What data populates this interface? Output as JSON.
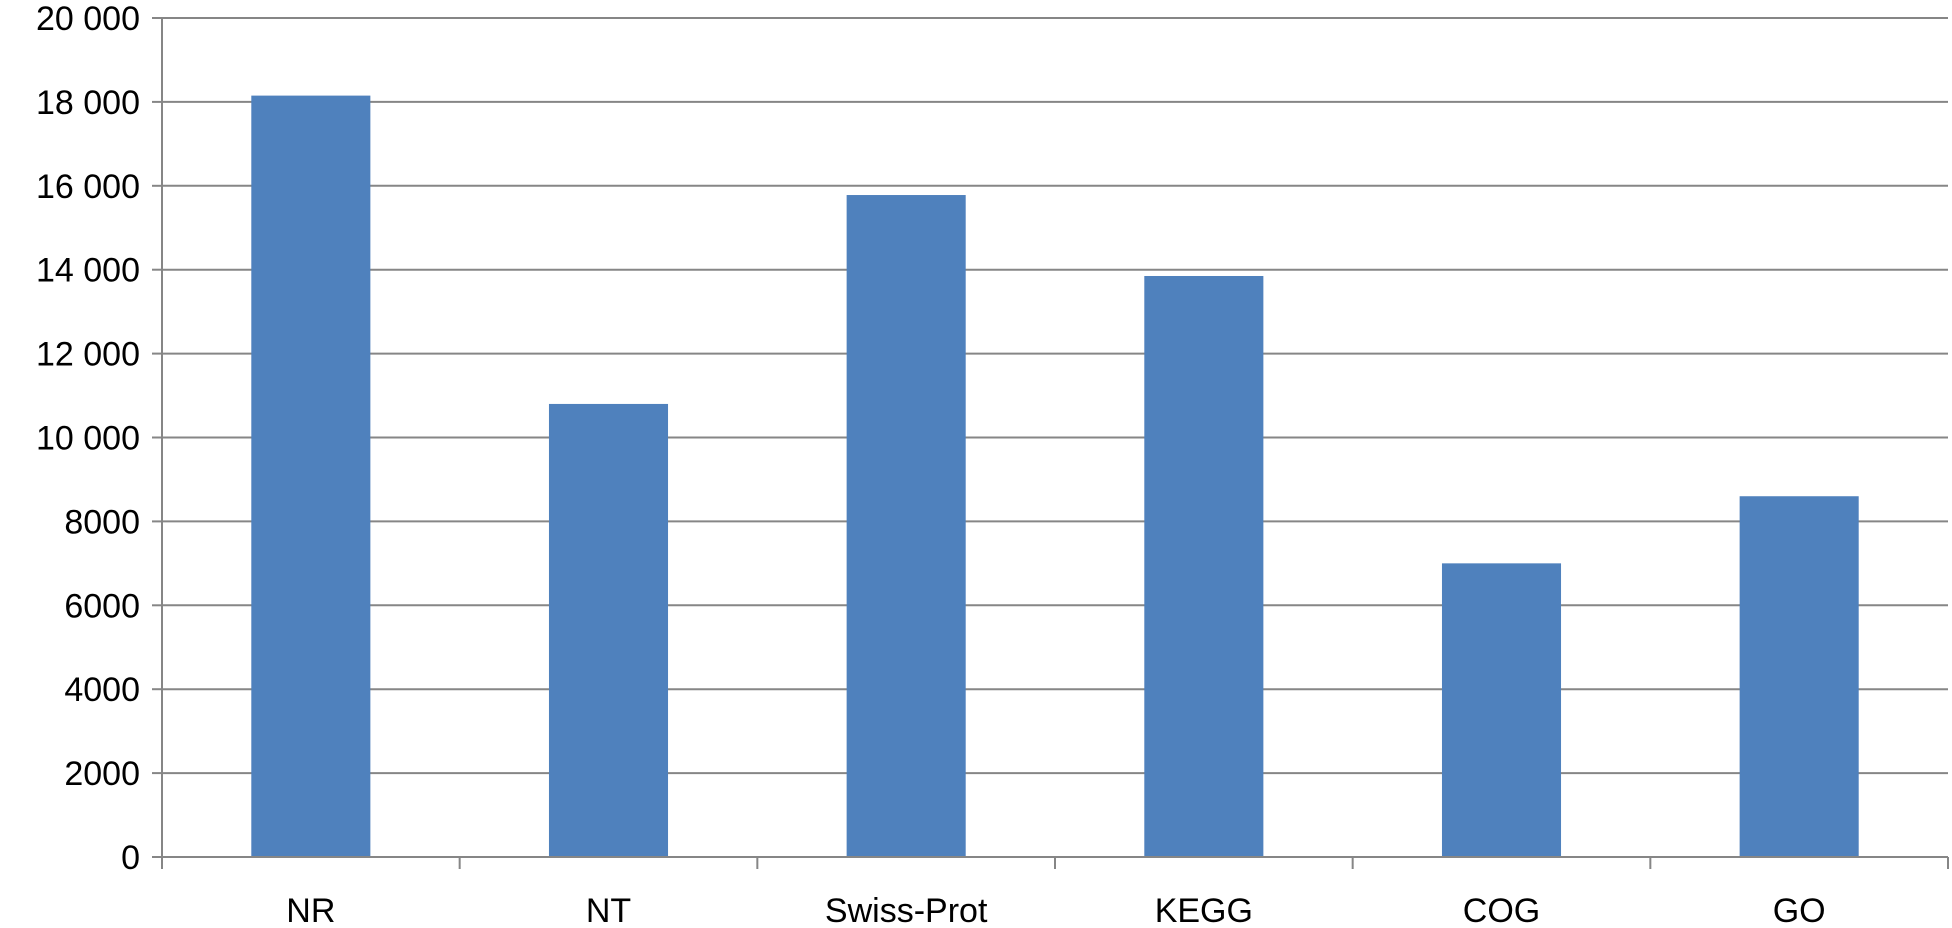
{
  "chart_data": {
    "type": "bar",
    "title": "",
    "xlabel": "",
    "ylabel": "",
    "categories": [
      "NR",
      "NT",
      "Swiss-Prot",
      "KEGG",
      "COG",
      "GO"
    ],
    "values": [
      18150,
      10800,
      15780,
      13850,
      7000,
      8600
    ],
    "ylim": [
      0,
      20000
    ],
    "yticks": [
      0,
      2000,
      4000,
      6000,
      8000,
      10000,
      12000,
      14000,
      16000,
      18000,
      20000
    ],
    "ytick_labels": [
      "0",
      "2000",
      "4000",
      "6000",
      "8000",
      "10 000",
      "12 000",
      "14 000",
      "16 000",
      "18 000",
      "20 000"
    ],
    "grid": true,
    "legend": "none",
    "colors": {
      "bar": "#4f81bd",
      "grid": "#868686",
      "axis": "#868686"
    }
  }
}
